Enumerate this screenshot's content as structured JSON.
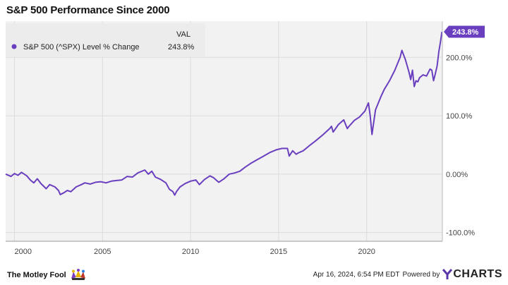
{
  "title": "S&P 500 Performance Since 2000",
  "legend": {
    "header": "VAL",
    "series_name": "S&P 500 (^SPX) Level % Change",
    "value": "243.8%"
  },
  "end_label": "243.8%",
  "footer": {
    "brand": "The Motley Fool",
    "timestamp": "Apr 16, 2024, 6:54 PM EDT",
    "powered_by": "Powered by",
    "ycharts": "CHARTS"
  },
  "colors": {
    "line": "#6a3fbf",
    "plot_bg": "#f2f2f2",
    "grid": "#dcdcdc",
    "label_bg": "#6a3fbf"
  },
  "chart_data": {
    "type": "line",
    "title": "S&P 500 Performance Since 2000",
    "xlabel": "",
    "ylabel": "",
    "xlim": [
      1999.5,
      2024.3
    ],
    "ylim": [
      -115,
      262
    ],
    "x_ticks": [
      2000,
      2005,
      2010,
      2015,
      2020
    ],
    "x_tick_labels": [
      "2000",
      "2005",
      "2010",
      "2015",
      "2020"
    ],
    "y_ticks": [
      -100,
      0,
      100,
      200
    ],
    "y_tick_labels": [
      "-100.0%",
      "0.00%",
      "100.0%",
      "200.0%"
    ],
    "grid": true,
    "legend_position": "top-left",
    "series": [
      {
        "name": "S&P 500 (^SPX) Level % Change",
        "x": [
          1999.5,
          1999.8,
          2000.0,
          2000.2,
          2000.4,
          2000.7,
          2000.9,
          2001.1,
          2001.3,
          2001.5,
          2001.7,
          2001.8,
          2002.0,
          2002.3,
          2002.5,
          2002.6,
          2002.8,
          2003.0,
          2003.2,
          2003.5,
          2003.8,
          2004.0,
          2004.3,
          2004.6,
          2004.9,
          2005.2,
          2005.5,
          2005.8,
          2006.1,
          2006.4,
          2006.7,
          2007.0,
          2007.4,
          2007.6,
          2007.8,
          2008.0,
          2008.3,
          2008.6,
          2008.8,
          2009.0,
          2009.1,
          2009.2,
          2009.4,
          2009.7,
          2010.0,
          2010.3,
          2010.5,
          2010.8,
          2011.1,
          2011.3,
          2011.6,
          2011.9,
          2012.2,
          2012.5,
          2012.8,
          2013.1,
          2013.4,
          2013.8,
          2014.1,
          2014.5,
          2014.9,
          2015.2,
          2015.5,
          2015.6,
          2015.8,
          2016.0,
          2016.1,
          2016.4,
          2016.8,
          2017.1,
          2017.5,
          2017.9,
          2018.0,
          2018.1,
          2018.4,
          2018.7,
          2018.9,
          2019.0,
          2019.3,
          2019.6,
          2019.9,
          2020.1,
          2020.2,
          2020.3,
          2020.5,
          2020.8,
          2021.0,
          2021.3,
          2021.6,
          2021.9,
          2022.0,
          2022.2,
          2022.4,
          2022.5,
          2022.6,
          2022.7,
          2022.8,
          2022.9,
          2023.0,
          2023.2,
          2023.4,
          2023.6,
          2023.7,
          2023.8,
          2023.9,
          2024.0,
          2024.1,
          2024.2,
          2024.27
        ],
        "y": [
          0,
          -4,
          1,
          -2,
          3,
          -3,
          -10,
          -15,
          -8,
          -16,
          -22,
          -25,
          -18,
          -22,
          -28,
          -35,
          -32,
          -28,
          -30,
          -22,
          -18,
          -15,
          -17,
          -14,
          -13,
          -15,
          -12,
          -11,
          -10,
          -4,
          -5,
          2,
          7,
          0,
          5,
          -5,
          -9,
          -15,
          -26,
          -30,
          -36,
          -30,
          -22,
          -16,
          -12,
          -10,
          -18,
          -9,
          -3,
          -6,
          -14,
          -8,
          0,
          2,
          5,
          12,
          18,
          25,
          30,
          37,
          42,
          44,
          44,
          31,
          40,
          34,
          36,
          40,
          50,
          57,
          67,
          78,
          82,
          72,
          85,
          93,
          78,
          82,
          92,
          98,
          108,
          122,
          100,
          68,
          110,
          132,
          145,
          160,
          178,
          200,
          212,
          196,
          175,
          162,
          178,
          150,
          160,
          158,
          165,
          170,
          168,
          180,
          178,
          160,
          172,
          185,
          210,
          228,
          243.8
        ]
      }
    ]
  }
}
